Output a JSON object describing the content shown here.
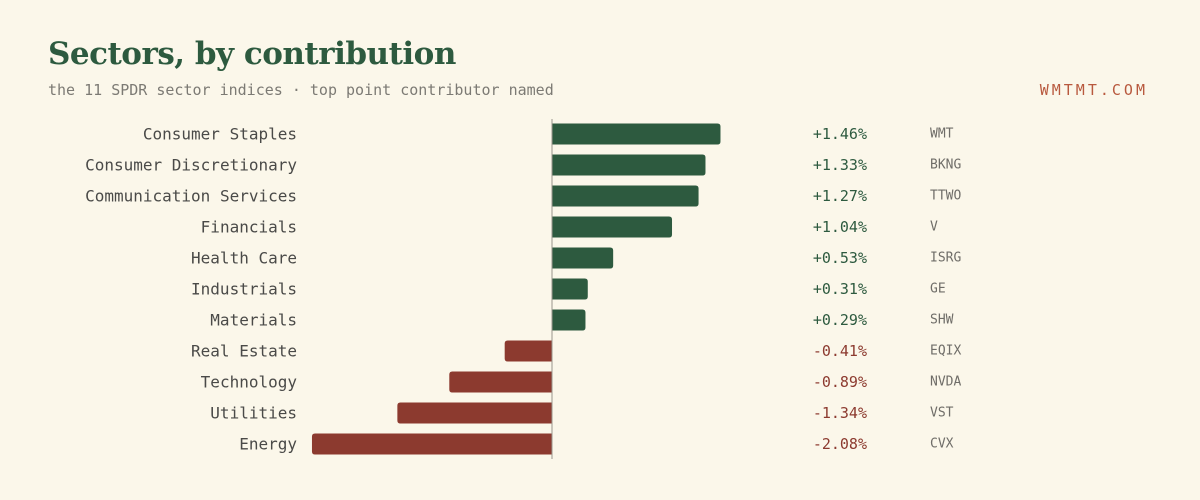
{
  "header": {
    "title": "Sectors, by contribution",
    "subtitle": "the 11 SPDR sector indices · top point contributor named",
    "brand": "WMTMT.COM"
  },
  "colors": {
    "background": "#fbf7ea",
    "positive": "#2d5a3f",
    "negative": "#8c3a2f",
    "label": "#4a4a48",
    "ticker": "#6f6d68",
    "brand": "#b8593e"
  },
  "chart_data": {
    "type": "bar",
    "orientation": "horizontal",
    "title": "Sectors, by contribution",
    "subtitle": "the 11 SPDR sector indices · top point contributor named",
    "xlim": [
      -2.08,
      1.46
    ],
    "grid": false,
    "legend": "none",
    "categories": [
      "Consumer Staples",
      "Consumer Discretionary",
      "Communication Services",
      "Financials",
      "Health Care",
      "Industrials",
      "Materials",
      "Real Estate",
      "Technology",
      "Utilities",
      "Energy"
    ],
    "values": [
      1.46,
      1.33,
      1.27,
      1.04,
      0.53,
      0.31,
      0.29,
      -0.41,
      -0.89,
      -1.34,
      -2.08
    ],
    "value_labels": [
      "+1.46%",
      "+1.33%",
      "+1.27%",
      "+1.04%",
      "+0.53%",
      "+0.31%",
      "+0.29%",
      "-0.41%",
      "-0.89%",
      "-1.34%",
      "-2.08%"
    ],
    "contributors": [
      "WMT",
      "BKNG",
      "TTWO",
      "V",
      "ISRG",
      "GE",
      "SHW",
      "EQIX",
      "NVDA",
      "VST",
      "CVX"
    ]
  }
}
